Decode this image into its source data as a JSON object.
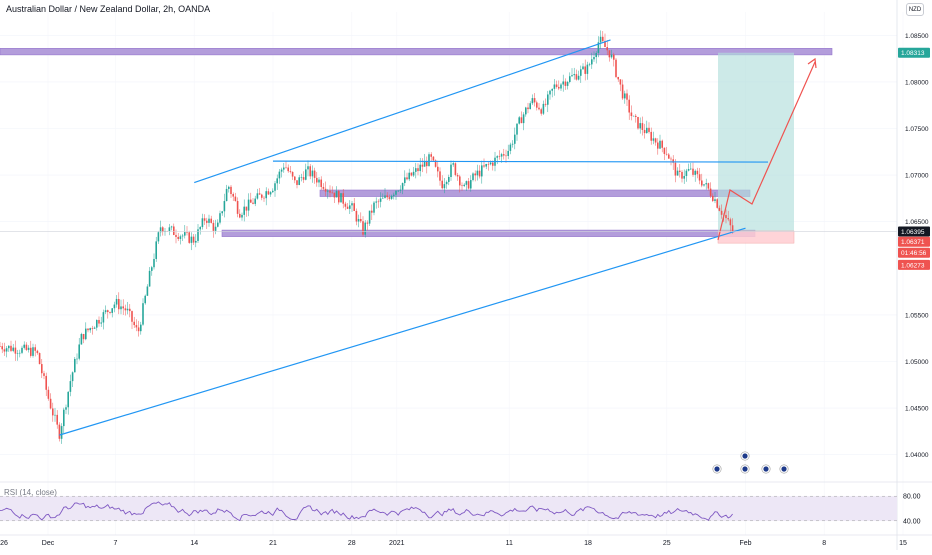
{
  "header": {
    "title": "Australian Dollar / New Zealand Dollar, 2h, OANDA",
    "currency_button": "NZD"
  },
  "rsi": {
    "label": "RSI (14, close)",
    "upper_label": "80.00",
    "lower_label": "40.00"
  },
  "colors": {
    "up": "#26a69a",
    "down": "#ef5350",
    "trendline": "#2196f3",
    "zone": "#b39ddb",
    "zone_border": "#9575cd",
    "target_box": "#b2dfdb",
    "stop_box": "#ffcdd2",
    "arrow": "#ef5350",
    "rsi_line": "#7e57c2",
    "rsi_band": "#ede7f6",
    "price_badge_teal": "#26a69a",
    "price_badge_red": "#ef5350",
    "price_badge_dark": "#131722"
  },
  "chart_data": {
    "type": "candlestick",
    "title": "Australian Dollar / New Zealand Dollar, 2h, OANDA",
    "x_tick_labels": [
      "26",
      "Dec",
      "7",
      "14",
      "21",
      "28",
      "2021",
      "11",
      "18",
      "25",
      "Feb",
      "8",
      "15"
    ],
    "y_tick_labels": [
      "1.08500",
      "1.08000",
      "1.07500",
      "1.07000",
      "1.06500",
      "1.05500",
      "1.05000",
      "1.04500",
      "1.04000"
    ],
    "ylim": [
      1.0375,
      1.0875
    ],
    "price_path": [
      {
        "x": "Nov 26",
        "y": 1.0518
      },
      {
        "x": "Nov 30",
        "y": 1.051
      },
      {
        "x": "Dec 1",
        "y": 1.0462
      },
      {
        "x": "Dec 2",
        "y": 1.0422
      },
      {
        "x": "Dec 3",
        "y": 1.048
      },
      {
        "x": "Dec 4",
        "y": 1.0527
      },
      {
        "x": "Dec 7",
        "y": 1.0563
      },
      {
        "x": "Dec 8",
        "y": 1.0555
      },
      {
        "x": "Dec 9",
        "y": 1.053
      },
      {
        "x": "Dec 10",
        "y": 1.059
      },
      {
        "x": "Dec 11",
        "y": 1.0645
      },
      {
        "x": "Dec 14",
        "y": 1.063
      },
      {
        "x": "Dec 15",
        "y": 1.0655
      },
      {
        "x": "Dec 16",
        "y": 1.064
      },
      {
        "x": "Dec 17",
        "y": 1.069
      },
      {
        "x": "Dec 18",
        "y": 1.066
      },
      {
        "x": "Dec 21",
        "y": 1.0688
      },
      {
        "x": "Dec 22",
        "y": 1.0712
      },
      {
        "x": "Dec 23",
        "y": 1.069
      },
      {
        "x": "Dec 24",
        "y": 1.0705
      },
      {
        "x": "Dec 28",
        "y": 1.0665
      },
      {
        "x": "Dec 29",
        "y": 1.064
      },
      {
        "x": "Dec 30",
        "y": 1.0668
      },
      {
        "x": "Dec 31",
        "y": 1.0675
      },
      {
        "x": "Jan 4",
        "y": 1.0718
      },
      {
        "x": "Jan 5",
        "y": 1.069
      },
      {
        "x": "Jan 6",
        "y": 1.071
      },
      {
        "x": "Jan 7",
        "y": 1.0685
      },
      {
        "x": "Jan 8",
        "y": 1.07
      },
      {
        "x": "Jan 11",
        "y": 1.0728
      },
      {
        "x": "Jan 12",
        "y": 1.076
      },
      {
        "x": "Jan 13",
        "y": 1.078
      },
      {
        "x": "Jan 14",
        "y": 1.077
      },
      {
        "x": "Jan 15",
        "y": 1.0795
      },
      {
        "x": "Jan 18",
        "y": 1.0815
      },
      {
        "x": "Jan 19",
        "y": 1.0845
      },
      {
        "x": "Jan 20",
        "y": 1.083
      },
      {
        "x": "Jan 21",
        "y": 1.079
      },
      {
        "x": "Jan 22",
        "y": 1.076
      },
      {
        "x": "Jan 25",
        "y": 1.0725
      },
      {
        "x": "Jan 26",
        "y": 1.0698
      },
      {
        "x": "Jan 27",
        "y": 1.0705
      },
      {
        "x": "Jan 28",
        "y": 1.0695
      },
      {
        "x": "Jan 29",
        "y": 1.068
      },
      {
        "x": "Jan 31",
        "y": 1.0637
      }
    ],
    "price_labels": [
      {
        "text": "1.08313",
        "value": 1.08313,
        "color": "#26a69a"
      },
      {
        "text": "1.06395",
        "value": 1.06395,
        "color": "#131722"
      },
      {
        "text": "1.06371",
        "value": 1.06371,
        "color": "#ef5350"
      },
      {
        "text": "01:46:56",
        "value": 1.0628,
        "color": "#ef5350"
      },
      {
        "text": "1.06273",
        "value": 1.06273,
        "color": "#ef5350"
      }
    ],
    "zones": [
      {
        "from": 1.0829,
        "to": 1.0836
      },
      {
        "from": 1.0677,
        "to": 1.0684
      },
      {
        "from": 1.0634,
        "to": 1.0641
      }
    ],
    "trendlines": [
      {
        "from": {
          "x": "Dec 2",
          "y": 1.0421
        },
        "to": {
          "x": "Feb 1",
          "y": 1.0643
        }
      },
      {
        "from": {
          "x": "Dec 14",
          "y": 1.0692
        },
        "to": {
          "x": "Jan 20",
          "y": 1.0845
        }
      },
      {
        "from": {
          "x": "Dec 21",
          "y": 1.0715
        },
        "to": {
          "x": "Feb 3",
          "y": 1.0714
        }
      }
    ],
    "rsi": {
      "label": "RSI (14, close)",
      "levels": [
        80,
        40
      ],
      "ylim": [
        25,
        95
      ]
    }
  }
}
